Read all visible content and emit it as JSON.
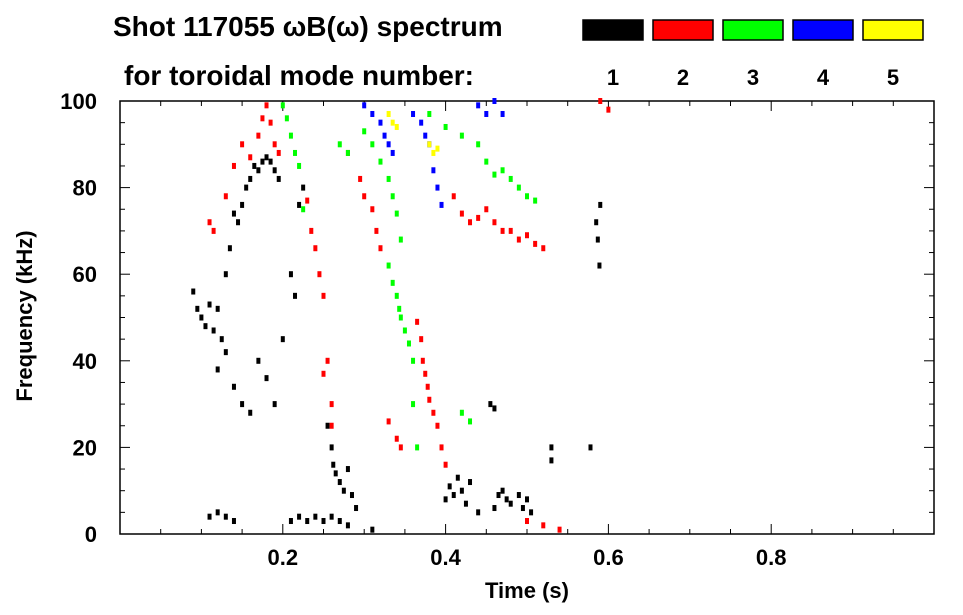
{
  "chart_data": {
    "type": "scatter",
    "title_line1": "Shot 117055 ωB(ω) spectrum",
    "title_line2": "for toroidal mode number:",
    "xlabel": "Time (s)",
    "ylabel": "Frequency (kHz)",
    "xlim": [
      0.0,
      1.0
    ],
    "ylim": [
      0,
      100
    ],
    "xticks": [
      0.2,
      0.4,
      0.6,
      0.8
    ],
    "xtick_labels": [
      "0.2",
      "0.4",
      "0.6",
      "0.8"
    ],
    "yticks": [
      0,
      20,
      40,
      60,
      80,
      100
    ],
    "ytick_labels": [
      "0",
      "20",
      "40",
      "60",
      "80",
      "100"
    ],
    "grid": false,
    "legend_position": "top-right",
    "legend": [
      {
        "label": "1",
        "color": "#000000"
      },
      {
        "label": "2",
        "color": "#ff0000"
      },
      {
        "label": "3",
        "color": "#00ff00"
      },
      {
        "label": "4",
        "color": "#0000ff"
      },
      {
        "label": "5",
        "color": "#ffff00"
      }
    ],
    "series": [
      {
        "mode": "1",
        "color": "#000000",
        "points": [
          [
            0.09,
            56
          ],
          [
            0.095,
            52
          ],
          [
            0.1,
            50
          ],
          [
            0.105,
            48
          ],
          [
            0.11,
            53
          ],
          [
            0.115,
            47
          ],
          [
            0.12,
            52
          ],
          [
            0.125,
            45
          ],
          [
            0.13,
            60
          ],
          [
            0.135,
            66
          ],
          [
            0.14,
            74
          ],
          [
            0.145,
            72
          ],
          [
            0.15,
            76
          ],
          [
            0.155,
            80
          ],
          [
            0.16,
            82
          ],
          [
            0.165,
            85
          ],
          [
            0.17,
            84
          ],
          [
            0.175,
            86
          ],
          [
            0.18,
            87
          ],
          [
            0.185,
            86
          ],
          [
            0.19,
            84
          ],
          [
            0.195,
            82
          ],
          [
            0.12,
            38
          ],
          [
            0.13,
            42
          ],
          [
            0.14,
            34
          ],
          [
            0.15,
            30
          ],
          [
            0.16,
            28
          ],
          [
            0.17,
            40
          ],
          [
            0.18,
            36
          ],
          [
            0.19,
            30
          ],
          [
            0.2,
            45
          ],
          [
            0.21,
            60
          ],
          [
            0.215,
            55
          ],
          [
            0.22,
            76
          ],
          [
            0.225,
            80
          ],
          [
            0.255,
            25
          ],
          [
            0.26,
            20
          ],
          [
            0.262,
            16
          ],
          [
            0.265,
            14
          ],
          [
            0.27,
            12
          ],
          [
            0.275,
            10
          ],
          [
            0.28,
            15
          ],
          [
            0.285,
            9
          ],
          [
            0.29,
            6
          ],
          [
            0.11,
            4
          ],
          [
            0.12,
            5
          ],
          [
            0.13,
            4
          ],
          [
            0.14,
            3
          ],
          [
            0.21,
            3
          ],
          [
            0.22,
            4
          ],
          [
            0.23,
            3
          ],
          [
            0.24,
            4
          ],
          [
            0.25,
            3
          ],
          [
            0.26,
            4
          ],
          [
            0.27,
            3
          ],
          [
            0.28,
            2
          ],
          [
            0.31,
            1
          ],
          [
            0.4,
            8
          ],
          [
            0.405,
            11
          ],
          [
            0.41,
            9
          ],
          [
            0.415,
            13
          ],
          [
            0.42,
            10
          ],
          [
            0.425,
            7
          ],
          [
            0.43,
            12
          ],
          [
            0.44,
            5
          ],
          [
            0.455,
            30
          ],
          [
            0.46,
            29
          ],
          [
            0.46,
            6
          ],
          [
            0.465,
            9
          ],
          [
            0.47,
            10
          ],
          [
            0.475,
            8
          ],
          [
            0.48,
            7
          ],
          [
            0.49,
            9
          ],
          [
            0.495,
            6
          ],
          [
            0.5,
            8
          ],
          [
            0.505,
            5
          ],
          [
            0.53,
            20
          ],
          [
            0.53,
            17
          ],
          [
            0.578,
            20
          ],
          [
            0.585,
            72
          ],
          [
            0.587,
            68
          ],
          [
            0.589,
            62
          ],
          [
            0.59,
            76
          ]
        ]
      },
      {
        "mode": "2",
        "color": "#ff0000",
        "points": [
          [
            0.11,
            72
          ],
          [
            0.115,
            70
          ],
          [
            0.13,
            78
          ],
          [
            0.14,
            85
          ],
          [
            0.15,
            90
          ],
          [
            0.16,
            87
          ],
          [
            0.17,
            92
          ],
          [
            0.175,
            96
          ],
          [
            0.18,
            99
          ],
          [
            0.185,
            95
          ],
          [
            0.19,
            90
          ],
          [
            0.195,
            88
          ],
          [
            0.23,
            77
          ],
          [
            0.235,
            70
          ],
          [
            0.24,
            66
          ],
          [
            0.245,
            60
          ],
          [
            0.25,
            55
          ],
          [
            0.255,
            40
          ],
          [
            0.26,
            30
          ],
          [
            0.26,
            25
          ],
          [
            0.25,
            37
          ],
          [
            0.28,
            88
          ],
          [
            0.295,
            82
          ],
          [
            0.3,
            78
          ],
          [
            0.31,
            75
          ],
          [
            0.315,
            70
          ],
          [
            0.32,
            66
          ],
          [
            0.33,
            26
          ],
          [
            0.34,
            22
          ],
          [
            0.345,
            20
          ],
          [
            0.365,
            49
          ],
          [
            0.37,
            45
          ],
          [
            0.372,
            40
          ],
          [
            0.375,
            37
          ],
          [
            0.378,
            34
          ],
          [
            0.38,
            31
          ],
          [
            0.385,
            28
          ],
          [
            0.39,
            25
          ],
          [
            0.395,
            20
          ],
          [
            0.4,
            16
          ],
          [
            0.41,
            78
          ],
          [
            0.42,
            74
          ],
          [
            0.43,
            72
          ],
          [
            0.44,
            73
          ],
          [
            0.45,
            75
          ],
          [
            0.46,
            72
          ],
          [
            0.47,
            70
          ],
          [
            0.48,
            70
          ],
          [
            0.49,
            68
          ],
          [
            0.5,
            69
          ],
          [
            0.51,
            67
          ],
          [
            0.52,
            66
          ],
          [
            0.5,
            3
          ],
          [
            0.52,
            2
          ],
          [
            0.54,
            1
          ],
          [
            0.59,
            100
          ],
          [
            0.6,
            98
          ]
        ]
      },
      {
        "mode": "3",
        "color": "#00ff00",
        "points": [
          [
            0.2,
            99
          ],
          [
            0.205,
            96
          ],
          [
            0.21,
            92
          ],
          [
            0.215,
            88
          ],
          [
            0.22,
            85
          ],
          [
            0.225,
            75
          ],
          [
            0.27,
            90
          ],
          [
            0.28,
            88
          ],
          [
            0.3,
            93
          ],
          [
            0.31,
            90
          ],
          [
            0.32,
            86
          ],
          [
            0.33,
            82
          ],
          [
            0.335,
            78
          ],
          [
            0.34,
            74
          ],
          [
            0.345,
            68
          ],
          [
            0.33,
            62
          ],
          [
            0.335,
            58
          ],
          [
            0.34,
            55
          ],
          [
            0.343,
            52
          ],
          [
            0.345,
            50
          ],
          [
            0.35,
            47
          ],
          [
            0.355,
            44
          ],
          [
            0.36,
            40
          ],
          [
            0.36,
            30
          ],
          [
            0.365,
            20
          ],
          [
            0.38,
            97
          ],
          [
            0.4,
            94
          ],
          [
            0.42,
            92
          ],
          [
            0.44,
            90
          ],
          [
            0.45,
            86
          ],
          [
            0.46,
            83
          ],
          [
            0.47,
            84
          ],
          [
            0.48,
            82
          ],
          [
            0.49,
            80
          ],
          [
            0.5,
            78
          ],
          [
            0.51,
            77
          ],
          [
            0.42,
            28
          ],
          [
            0.43,
            26
          ]
        ]
      },
      {
        "mode": "4",
        "color": "#0000ff",
        "points": [
          [
            0.3,
            99
          ],
          [
            0.31,
            97
          ],
          [
            0.32,
            95
          ],
          [
            0.325,
            92
          ],
          [
            0.33,
            90
          ],
          [
            0.335,
            88
          ],
          [
            0.36,
            97
          ],
          [
            0.37,
            95
          ],
          [
            0.375,
            92
          ],
          [
            0.38,
            90
          ],
          [
            0.385,
            84
          ],
          [
            0.39,
            80
          ],
          [
            0.395,
            76
          ],
          [
            0.44,
            99
          ],
          [
            0.45,
            97
          ],
          [
            0.46,
            100
          ],
          [
            0.47,
            97
          ]
        ]
      },
      {
        "mode": "5",
        "color": "#ffff00",
        "points": [
          [
            0.33,
            97
          ],
          [
            0.335,
            95
          ],
          [
            0.34,
            94
          ],
          [
            0.38,
            90
          ],
          [
            0.385,
            88
          ],
          [
            0.39,
            89
          ]
        ]
      }
    ]
  }
}
